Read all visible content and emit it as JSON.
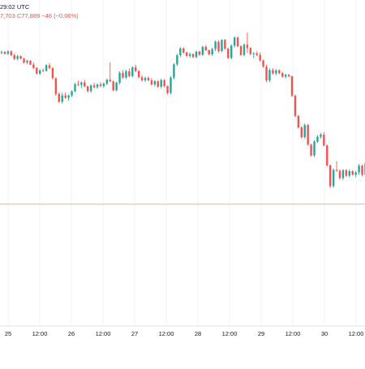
{
  "header": {
    "time_text": "29:02 UTC",
    "ohlc_text": "7,703  C77,889  −46 (−0.06%)"
  },
  "colors": {
    "up": "#26a69a",
    "down": "#ef5350",
    "grid": "#f0f3fa",
    "axis_text": "#131722",
    "header_text": "#ef5350",
    "header_muted": "#787b86",
    "ref_line": "#f7a9a7"
  },
  "chart_data": {
    "type": "candlestick",
    "x_tick_labels": [
      "25",
      "12:00",
      "26",
      "12:00",
      "27",
      "12:00",
      "28",
      "12:00",
      "29",
      "12:00",
      "30",
      "12:00"
    ],
    "ylim": [
      0,
      100
    ],
    "grid": true,
    "reference_line": 40,
    "candles": [
      {
        "o": 90.1,
        "h": 90.8,
        "l": 89.5,
        "c": 90.3
      },
      {
        "o": 90.3,
        "h": 90.6,
        "l": 89.4,
        "c": 89.7
      },
      {
        "o": 89.7,
        "h": 90.9,
        "l": 89.3,
        "c": 90.5
      },
      {
        "o": 90.5,
        "h": 90.8,
        "l": 88.9,
        "c": 89.2
      },
      {
        "o": 89.2,
        "h": 89.8,
        "l": 87.6,
        "c": 88.0
      },
      {
        "o": 88.0,
        "h": 89.4,
        "l": 87.5,
        "c": 88.9
      },
      {
        "o": 88.9,
        "h": 89.2,
        "l": 87.8,
        "c": 88.1
      },
      {
        "o": 88.1,
        "h": 88.4,
        "l": 86.5,
        "c": 86.8
      },
      {
        "o": 86.8,
        "h": 87.7,
        "l": 86.2,
        "c": 87.4
      },
      {
        "o": 87.4,
        "h": 87.6,
        "l": 85.9,
        "c": 86.1
      },
      {
        "o": 86.1,
        "h": 86.9,
        "l": 84.7,
        "c": 85.0
      },
      {
        "o": 85.0,
        "h": 85.3,
        "l": 82.8,
        "c": 83.1
      },
      {
        "o": 83.1,
        "h": 84.6,
        "l": 82.6,
        "c": 84.2
      },
      {
        "o": 84.2,
        "h": 84.9,
        "l": 83.6,
        "c": 84.0
      },
      {
        "o": 84.0,
        "h": 86.3,
        "l": 83.8,
        "c": 85.9
      },
      {
        "o": 85.9,
        "h": 86.6,
        "l": 84.6,
        "c": 85.0
      },
      {
        "o": 85.0,
        "h": 85.2,
        "l": 81.2,
        "c": 81.6
      },
      {
        "o": 81.6,
        "h": 81.9,
        "l": 75.8,
        "c": 76.4
      },
      {
        "o": 76.4,
        "h": 76.9,
        "l": 73.4,
        "c": 73.8
      },
      {
        "o": 73.8,
        "h": 76.8,
        "l": 73.2,
        "c": 75.9
      },
      {
        "o": 75.9,
        "h": 76.9,
        "l": 74.8,
        "c": 75.1
      },
      {
        "o": 75.1,
        "h": 76.2,
        "l": 74.2,
        "c": 75.9
      },
      {
        "o": 75.9,
        "h": 77.6,
        "l": 75.4,
        "c": 77.3
      },
      {
        "o": 77.3,
        "h": 80.1,
        "l": 76.9,
        "c": 79.6
      },
      {
        "o": 79.6,
        "h": 80.8,
        "l": 79.0,
        "c": 79.4
      },
      {
        "o": 79.4,
        "h": 80.6,
        "l": 78.3,
        "c": 80.2
      },
      {
        "o": 80.2,
        "h": 81.0,
        "l": 78.6,
        "c": 78.9
      },
      {
        "o": 78.9,
        "h": 79.1,
        "l": 76.9,
        "c": 77.3
      },
      {
        "o": 77.3,
        "h": 79.6,
        "l": 76.8,
        "c": 79.2
      },
      {
        "o": 79.2,
        "h": 80.1,
        "l": 78.2,
        "c": 78.6
      },
      {
        "o": 78.6,
        "h": 79.9,
        "l": 78.1,
        "c": 79.5
      },
      {
        "o": 79.5,
        "h": 80.3,
        "l": 78.6,
        "c": 79.0
      },
      {
        "o": 79.0,
        "h": 80.2,
        "l": 78.4,
        "c": 79.8
      },
      {
        "o": 79.8,
        "h": 81.5,
        "l": 79.3,
        "c": 81.1
      },
      {
        "o": 81.1,
        "h": 86.9,
        "l": 80.6,
        "c": 80.5
      },
      {
        "o": 80.5,
        "h": 80.9,
        "l": 77.3,
        "c": 77.6
      },
      {
        "o": 77.6,
        "h": 80.5,
        "l": 77.2,
        "c": 80.1
      },
      {
        "o": 80.1,
        "h": 83.9,
        "l": 79.5,
        "c": 83.4
      },
      {
        "o": 83.4,
        "h": 84.2,
        "l": 81.4,
        "c": 81.8
      },
      {
        "o": 81.8,
        "h": 84.4,
        "l": 81.3,
        "c": 83.9
      },
      {
        "o": 83.9,
        "h": 84.8,
        "l": 81.9,
        "c": 82.3
      },
      {
        "o": 82.3,
        "h": 85.6,
        "l": 81.8,
        "c": 85.2
      },
      {
        "o": 85.2,
        "h": 86.1,
        "l": 83.6,
        "c": 84.0
      },
      {
        "o": 84.0,
        "h": 84.3,
        "l": 81.6,
        "c": 81.9
      },
      {
        "o": 81.9,
        "h": 82.6,
        "l": 80.5,
        "c": 80.9
      },
      {
        "o": 80.9,
        "h": 82.1,
        "l": 80.3,
        "c": 81.7
      },
      {
        "o": 81.7,
        "h": 82.2,
        "l": 80.6,
        "c": 80.9
      },
      {
        "o": 80.9,
        "h": 81.7,
        "l": 79.2,
        "c": 79.5
      },
      {
        "o": 79.5,
        "h": 80.9,
        "l": 78.9,
        "c": 80.6
      },
      {
        "o": 80.6,
        "h": 80.8,
        "l": 78.4,
        "c": 78.8
      },
      {
        "o": 78.8,
        "h": 81.4,
        "l": 78.2,
        "c": 81.0
      },
      {
        "o": 81.0,
        "h": 81.3,
        "l": 78.6,
        "c": 79.0
      },
      {
        "o": 79.0,
        "h": 79.2,
        "l": 76.2,
        "c": 76.7
      },
      {
        "o": 76.7,
        "h": 82.3,
        "l": 76.2,
        "c": 81.8
      },
      {
        "o": 81.8,
        "h": 86.6,
        "l": 81.2,
        "c": 86.2
      },
      {
        "o": 86.2,
        "h": 89.7,
        "l": 85.7,
        "c": 89.2
      },
      {
        "o": 89.2,
        "h": 91.9,
        "l": 88.6,
        "c": 91.5
      },
      {
        "o": 91.5,
        "h": 91.8,
        "l": 89.7,
        "c": 90.1
      },
      {
        "o": 90.1,
        "h": 90.4,
        "l": 88.6,
        "c": 89.0
      },
      {
        "o": 89.0,
        "h": 90.1,
        "l": 88.3,
        "c": 89.6
      },
      {
        "o": 89.6,
        "h": 89.8,
        "l": 88.3,
        "c": 88.6
      },
      {
        "o": 88.6,
        "h": 90.7,
        "l": 88.2,
        "c": 90.4
      },
      {
        "o": 90.4,
        "h": 90.7,
        "l": 89.0,
        "c": 89.4
      },
      {
        "o": 89.4,
        "h": 92.3,
        "l": 89.0,
        "c": 92.0
      },
      {
        "o": 92.0,
        "h": 92.6,
        "l": 90.6,
        "c": 90.9
      },
      {
        "o": 90.9,
        "h": 91.1,
        "l": 89.2,
        "c": 89.5
      },
      {
        "o": 89.5,
        "h": 91.7,
        "l": 89.0,
        "c": 91.3
      },
      {
        "o": 91.3,
        "h": 94.1,
        "l": 90.6,
        "c": 93.7
      },
      {
        "o": 93.7,
        "h": 94.2,
        "l": 90.1,
        "c": 90.6
      },
      {
        "o": 90.6,
        "h": 94.5,
        "l": 90.2,
        "c": 94.3
      },
      {
        "o": 94.3,
        "h": 94.6,
        "l": 91.0,
        "c": 91.4
      },
      {
        "o": 91.4,
        "h": 91.7,
        "l": 88.0,
        "c": 88.3
      },
      {
        "o": 88.3,
        "h": 92.8,
        "l": 87.9,
        "c": 92.4
      },
      {
        "o": 92.4,
        "h": 95.4,
        "l": 91.8,
        "c": 95.1
      },
      {
        "o": 95.1,
        "h": 95.5,
        "l": 91.9,
        "c": 92.2
      },
      {
        "o": 92.2,
        "h": 92.5,
        "l": 89.0,
        "c": 89.3
      },
      {
        "o": 89.3,
        "h": 93.1,
        "l": 88.8,
        "c": 92.7
      },
      {
        "o": 92.7,
        "h": 96.7,
        "l": 90.0,
        "c": 91.6
      },
      {
        "o": 91.6,
        "h": 91.9,
        "l": 89.3,
        "c": 89.6
      },
      {
        "o": 89.6,
        "h": 90.3,
        "l": 88.2,
        "c": 89.8
      },
      {
        "o": 89.8,
        "h": 90.5,
        "l": 89.0,
        "c": 89.3
      },
      {
        "o": 89.3,
        "h": 90.1,
        "l": 87.1,
        "c": 87.5
      },
      {
        "o": 87.5,
        "h": 87.8,
        "l": 85.1,
        "c": 85.4
      },
      {
        "o": 85.4,
        "h": 86.1,
        "l": 80.4,
        "c": 80.9
      },
      {
        "o": 80.9,
        "h": 84.8,
        "l": 80.3,
        "c": 84.3
      },
      {
        "o": 84.3,
        "h": 84.9,
        "l": 82.8,
        "c": 83.2
      },
      {
        "o": 83.2,
        "h": 84.6,
        "l": 82.6,
        "c": 84.2
      },
      {
        "o": 84.2,
        "h": 84.6,
        "l": 82.9,
        "c": 83.3
      },
      {
        "o": 83.3,
        "h": 83.7,
        "l": 81.8,
        "c": 82.1
      },
      {
        "o": 82.1,
        "h": 83.1,
        "l": 81.5,
        "c": 82.7
      },
      {
        "o": 82.7,
        "h": 83.0,
        "l": 82.0,
        "c": 82.2
      },
      {
        "o": 82.2,
        "h": 82.5,
        "l": 75.4,
        "c": 75.8
      },
      {
        "o": 75.8,
        "h": 76.2,
        "l": 68.6,
        "c": 69.1
      },
      {
        "o": 69.1,
        "h": 69.4,
        "l": 64.9,
        "c": 65.3
      },
      {
        "o": 65.3,
        "h": 65.7,
        "l": 61.6,
        "c": 62.1
      },
      {
        "o": 62.1,
        "h": 66.6,
        "l": 61.5,
        "c": 66.1
      },
      {
        "o": 66.1,
        "h": 66.5,
        "l": 59.2,
        "c": 59.6
      },
      {
        "o": 59.6,
        "h": 59.9,
        "l": 55.6,
        "c": 56.0
      },
      {
        "o": 56.0,
        "h": 61.1,
        "l": 55.5,
        "c": 60.6
      },
      {
        "o": 60.6,
        "h": 62.7,
        "l": 60.1,
        "c": 62.2
      },
      {
        "o": 62.2,
        "h": 63.5,
        "l": 61.5,
        "c": 62.9
      },
      {
        "o": 62.9,
        "h": 63.7,
        "l": 59.0,
        "c": 59.3
      },
      {
        "o": 59.3,
        "h": 59.6,
        "l": 52.3,
        "c": 52.7
      },
      {
        "o": 52.7,
        "h": 53.0,
        "l": 45.2,
        "c": 45.8
      },
      {
        "o": 45.8,
        "h": 51.7,
        "l": 45.3,
        "c": 51.2
      },
      {
        "o": 51.2,
        "h": 54.1,
        "l": 50.6,
        "c": 50.9
      },
      {
        "o": 50.9,
        "h": 51.4,
        "l": 48.1,
        "c": 48.5
      },
      {
        "o": 48.5,
        "h": 51.5,
        "l": 47.9,
        "c": 51.1
      },
      {
        "o": 51.1,
        "h": 51.5,
        "l": 48.9,
        "c": 49.3
      },
      {
        "o": 49.3,
        "h": 51.3,
        "l": 48.7,
        "c": 50.8
      },
      {
        "o": 50.8,
        "h": 51.1,
        "l": 49.3,
        "c": 49.6
      },
      {
        "o": 49.6,
        "h": 50.9,
        "l": 48.8,
        "c": 50.4
      },
      {
        "o": 50.4,
        "h": 53.2,
        "l": 49.6,
        "c": 52.6
      },
      {
        "o": 52.6,
        "h": 53.0,
        "l": 49.1,
        "c": 49.6
      },
      {
        "o": 49.6,
        "h": 53.8,
        "l": 48.3,
        "c": 53.4
      }
    ]
  }
}
